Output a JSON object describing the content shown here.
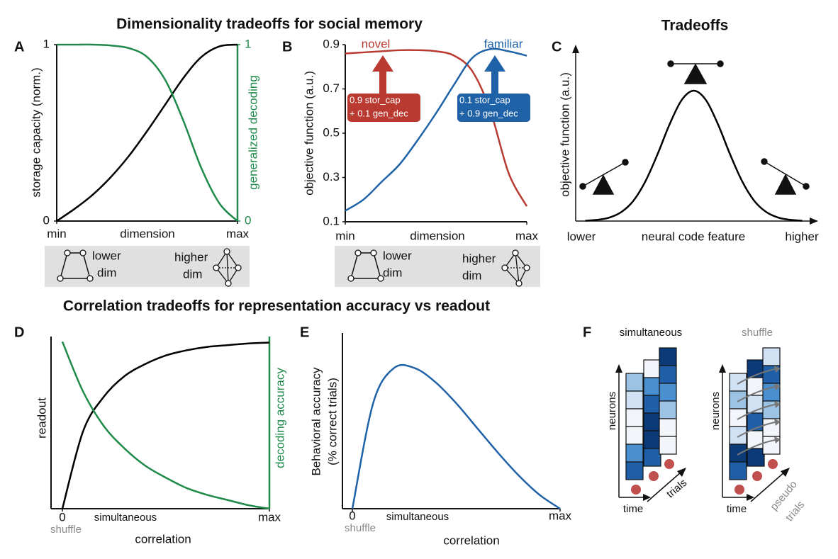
{
  "title": "Dimensionality tradeoffs for social memory",
  "subtitle": "Correlation tradeoffs  for representation accuracy vs readout",
  "panels": [
    "A",
    "B",
    "C",
    "D",
    "E",
    "F"
  ],
  "dim_boxes": [
    {
      "low": [
        "lower",
        "dim"
      ],
      "high": [
        "higher",
        "dim"
      ]
    },
    {
      "low": [
        "lower",
        "dim"
      ],
      "high": [
        "higher",
        "dim"
      ]
    }
  ],
  "schematic": {
    "left": {
      "title": "simultaneous",
      "y": "neurons",
      "x": "time",
      "z": [
        "trials"
      ]
    },
    "right": {
      "title": "shuffle",
      "y": "neurons",
      "x": "time",
      "z": [
        "pseudo",
        "trials"
      ]
    }
  },
  "chart_data": [
    {
      "type": "line",
      "xlabel": "dimension",
      "ylabel": "storage capacity (norm.)",
      "y2label": "generalized decoding",
      "y2color": "#1f8a4a",
      "x": [
        0,
        0.1,
        0.2,
        0.3,
        0.4,
        0.5,
        0.6,
        0.7,
        0.8,
        0.9,
        1
      ],
      "xlim": [
        0,
        1
      ],
      "xticks": [
        {
          "value": 0,
          "label": "min"
        },
        {
          "value": 1,
          "label": "max"
        }
      ],
      "ylim": [
        0,
        1
      ],
      "yticks": [
        0,
        1
      ],
      "y2lim": [
        0,
        1
      ],
      "y2ticks": [
        0,
        1
      ],
      "series": [
        {
          "color": "#000000",
          "values": [
            0,
            0.07,
            0.15,
            0.25,
            0.37,
            0.51,
            0.66,
            0.81,
            0.93,
            0.99,
            1
          ]
        },
        {
          "color": "#1f8a4a",
          "axis": "y2",
          "values": [
            1,
            1,
            1,
            0.995,
            0.98,
            0.93,
            0.8,
            0.57,
            0.3,
            0.1,
            0
          ]
        }
      ]
    },
    {
      "type": "line",
      "xlabel": "dimension",
      "ylabel": "objective function (a.u.)",
      "x": [
        0,
        0.1,
        0.2,
        0.3,
        0.4,
        0.5,
        0.6,
        0.7,
        0.8,
        0.9,
        1
      ],
      "xlim": [
        0,
        1
      ],
      "xticks": [
        {
          "value": 0,
          "label": "min"
        },
        {
          "value": 1,
          "label": "max"
        }
      ],
      "ylim": [
        0.1,
        0.9
      ],
      "yticks": [
        0.1,
        0.3,
        0.5,
        0.7,
        0.9
      ],
      "series": [
        {
          "name": "novel",
          "color": "#b83a31",
          "values": [
            0.86,
            0.865,
            0.87,
            0.875,
            0.875,
            0.87,
            0.85,
            0.78,
            0.6,
            0.32,
            0.17
          ]
        },
        {
          "name": "familiar",
          "color": "#2062a8",
          "values": [
            0.15,
            0.2,
            0.28,
            0.36,
            0.47,
            0.59,
            0.72,
            0.84,
            0.88,
            0.87,
            0.85
          ]
        }
      ],
      "annotations": [
        {
          "lines": [
            "0.9 stor_cap",
            "+ 0.1 gen_dec"
          ],
          "color": "#b83a31"
        },
        {
          "lines": [
            "0.1 stor_cap",
            "+ 0.9 gen_dec"
          ],
          "color": "#2062a8"
        }
      ]
    },
    {
      "type": "line",
      "title": "Tradeoffs",
      "xlabel": "neural code feature",
      "ylabel": "objective function (a.u.)",
      "end_labels": [
        "lower",
        "higher"
      ],
      "x": [
        0.04,
        0.09,
        0.14,
        0.19,
        0.24,
        0.29,
        0.34,
        0.39,
        0.44,
        0.49,
        0.54,
        0.59,
        0.64,
        0.69,
        0.74,
        0.79,
        0.84,
        0.89,
        0.94
      ],
      "xlim": [
        0,
        1
      ],
      "ylim": [
        0,
        1
      ],
      "series": [
        {
          "color": "#000000",
          "values": [
            0.002,
            0.007,
            0.02,
            0.052,
            0.117,
            0.229,
            0.383,
            0.554,
            0.692,
            0.745,
            0.692,
            0.554,
            0.383,
            0.229,
            0.117,
            0.052,
            0.02,
            0.007,
            0.002
          ]
        }
      ]
    },
    {
      "type": "line",
      "xlabel": "correlation",
      "ylabel": "readout",
      "y2label": "decoding accuracy",
      "y2color": "#1f8a4a",
      "notes": [
        "simultaneous",
        "shuffle"
      ],
      "x": [
        0,
        0.1,
        0.2,
        0.3,
        0.4,
        0.5,
        0.6,
        0.7,
        0.8,
        0.9,
        1
      ],
      "xlim": [
        0,
        1
      ],
      "xticks": [
        0,
        {
          "value": 1,
          "label": "max"
        }
      ],
      "ylim": [
        0,
        1
      ],
      "y2lim": [
        0,
        1
      ],
      "series": [
        {
          "color": "#000000",
          "values": [
            0,
            0.45,
            0.65,
            0.77,
            0.84,
            0.89,
            0.92,
            0.94,
            0.95,
            0.96,
            0.965
          ]
        },
        {
          "color": "#1f8a4a",
          "axis": "y2",
          "values": [
            0.97,
            0.68,
            0.48,
            0.35,
            0.25,
            0.18,
            0.12,
            0.08,
            0.05,
            0.02,
            0
          ]
        }
      ]
    },
    {
      "type": "line",
      "xlabel": "correlation",
      "ylabel": [
        "Behavioral accuracy",
        "(% correct trials)"
      ],
      "notes": [
        "simultaneous",
        "shuffle"
      ],
      "x": [
        0,
        0.1,
        0.2,
        0.3,
        0.4,
        0.5,
        0.6,
        0.7,
        0.8,
        0.9,
        1
      ],
      "xlim": [
        0,
        1
      ],
      "xticks": [
        0,
        {
          "value": 1,
          "label": "max"
        }
      ],
      "ylim": [
        0,
        1
      ],
      "series": [
        {
          "color": "#2062a8",
          "values": [
            0,
            0.6,
            0.8,
            0.8,
            0.72,
            0.6,
            0.46,
            0.32,
            0.19,
            0.08,
            0
          ]
        }
      ]
    }
  ]
}
